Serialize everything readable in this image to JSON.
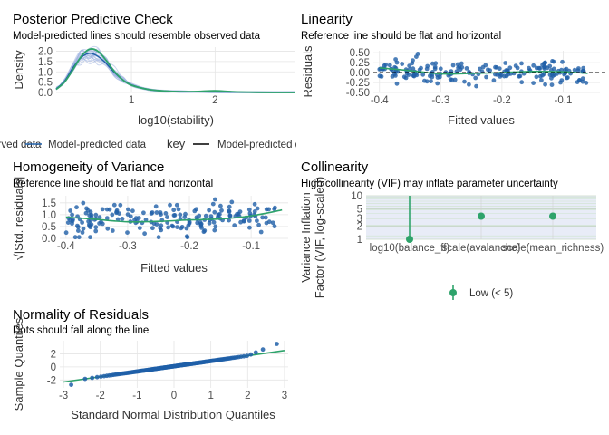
{
  "panels": {
    "ppc": {
      "title": "Posterior Predictive Check",
      "subtitle": "Model-predicted lines should resemble observed data",
      "xlabel": "log10(stability)",
      "ylabel": "Density",
      "legend_title": "key",
      "legend_items": [
        "Observed data",
        "Model-predicted data",
        "Model-predicted data"
      ]
    },
    "linearity": {
      "title": "Linearity",
      "subtitle": "Reference line should be flat and horizontal",
      "xlabel": "Fitted values",
      "ylabel": "Residuals"
    },
    "homogeneity": {
      "title": "Homogeneity of Variance",
      "subtitle": "Reference line should be flat and horizontal",
      "xlabel": "Fitted values",
      "ylabel": "√|Std. residuals|"
    },
    "collinearity": {
      "title": "Collinearity",
      "subtitle": "High collinearity (VIF) may inflate parameter uncertainty",
      "xlabel": "",
      "ylabel_line1": "Variance Inflation",
      "ylabel_line2": "Factor (VIF, log-scaled)",
      "legend_item": "Low (< 5)"
    },
    "normality": {
      "title": "Normality of Residuals",
      "subtitle": "Dots should fall along the line",
      "xlabel": "Standard Normal Distribution Quantiles",
      "ylabel": "Sample Quantiles"
    }
  },
  "colors": {
    "blue": "#1f5fa8",
    "green": "#2ea36b",
    "band_blue": "#9fb3e0",
    "grid": "#e5e5e5",
    "dashed": "#000000"
  },
  "chart_data": [
    {
      "panel": "ppc",
      "type": "line",
      "title": "Posterior Predictive Check",
      "xlabel": "log10(stability)",
      "ylabel": "Density",
      "xlim": [
        0.1,
        2.95
      ],
      "ylim": [
        0,
        2.2
      ],
      "x_ticks": [
        1,
        2
      ],
      "y_ticks": [
        0.0,
        0.5,
        1.0,
        1.5,
        2.0
      ],
      "series": [
        {
          "name": "Observed data",
          "x": [
            0.1,
            0.2,
            0.3,
            0.4,
            0.5,
            0.6,
            0.7,
            0.8,
            0.9,
            1.0,
            1.2,
            1.4,
            1.6,
            1.8,
            2.0,
            2.2,
            2.5,
            2.95
          ],
          "y": [
            0.15,
            0.5,
            1.1,
            1.75,
            2.1,
            2.0,
            1.55,
            1.0,
            0.6,
            0.35,
            0.15,
            0.07,
            0.04,
            0.05,
            0.08,
            0.04,
            0.01,
            0.0
          ]
        },
        {
          "name": "Model-predicted data",
          "x": [
            0.1,
            0.2,
            0.3,
            0.4,
            0.5,
            0.6,
            0.7,
            0.8,
            0.9,
            1.0,
            1.2,
            1.4,
            1.6,
            1.8,
            2.0,
            2.2,
            2.5,
            2.95
          ],
          "y": [
            0.18,
            0.55,
            1.2,
            1.7,
            1.9,
            1.75,
            1.4,
            0.95,
            0.6,
            0.37,
            0.15,
            0.07,
            0.04,
            0.03,
            0.02,
            0.01,
            0.0,
            0.0
          ]
        }
      ]
    },
    {
      "panel": "linearity",
      "type": "scatter",
      "title": "Linearity",
      "xlabel": "Fitted values",
      "ylabel": "Residuals",
      "xlim": [
        -0.41,
        -0.04
      ],
      "ylim": [
        -0.5,
        0.55
      ],
      "x_ticks": [
        -0.4,
        -0.3,
        -0.2,
        -0.1
      ],
      "y_ticks": [
        -0.5,
        -0.25,
        0.0,
        0.25,
        0.5
      ],
      "reference_line": 0,
      "smooth": {
        "x": [
          -0.4,
          -0.35,
          -0.3,
          -0.25,
          -0.2,
          -0.15,
          -0.1,
          -0.06
        ],
        "y": [
          0.12,
          0.05,
          -0.03,
          -0.02,
          0.0,
          0.03,
          0.02,
          -0.02
        ]
      }
    },
    {
      "panel": "homogeneity",
      "type": "scatter",
      "title": "Homogeneity of Variance",
      "xlabel": "Fitted values",
      "ylabel": "√|Std. residuals|",
      "xlim": [
        -0.41,
        -0.04
      ],
      "ylim": [
        0,
        1.8
      ],
      "x_ticks": [
        -0.4,
        -0.3,
        -0.2,
        -0.1
      ],
      "y_ticks": [
        0.0,
        0.5,
        1.0,
        1.5
      ],
      "smooth": {
        "x": [
          -0.4,
          -0.35,
          -0.3,
          -0.25,
          -0.2,
          -0.15,
          -0.1,
          -0.05
        ],
        "y": [
          0.9,
          0.8,
          0.7,
          0.72,
          0.78,
          0.82,
          0.95,
          1.2
        ]
      }
    },
    {
      "panel": "collinearity",
      "type": "scatter",
      "title": "Collinearity",
      "ylabel": "Variance Inflation Factor (VIF, log-scaled)",
      "y_scale": "log",
      "ylim": [
        1,
        10
      ],
      "y_ticks": [
        1,
        2,
        3,
        5,
        10
      ],
      "categories": [
        "log10(balance_ff)",
        "scale(avalanche)",
        "scale(mean_richness)"
      ],
      "values": [
        1.0,
        3.4,
        3.4
      ],
      "ci_upper": [
        10,
        3.4,
        3.4
      ],
      "legend": "Low (< 5)"
    },
    {
      "panel": "normality",
      "type": "scatter",
      "title": "Normality of Residuals",
      "xlabel": "Standard Normal Distribution Quantiles",
      "ylabel": "Sample Quantiles",
      "xlim": [
        -3.1,
        3.1
      ],
      "ylim": [
        -3.2,
        4.0
      ],
      "x_ticks": [
        -3,
        -2,
        -1,
        0,
        1,
        2,
        3
      ],
      "y_ticks": [
        -2,
        0,
        2
      ],
      "reference_line": {
        "x": [
          -3,
          3
        ],
        "y": [
          -2.3,
          2.5
        ]
      }
    }
  ]
}
